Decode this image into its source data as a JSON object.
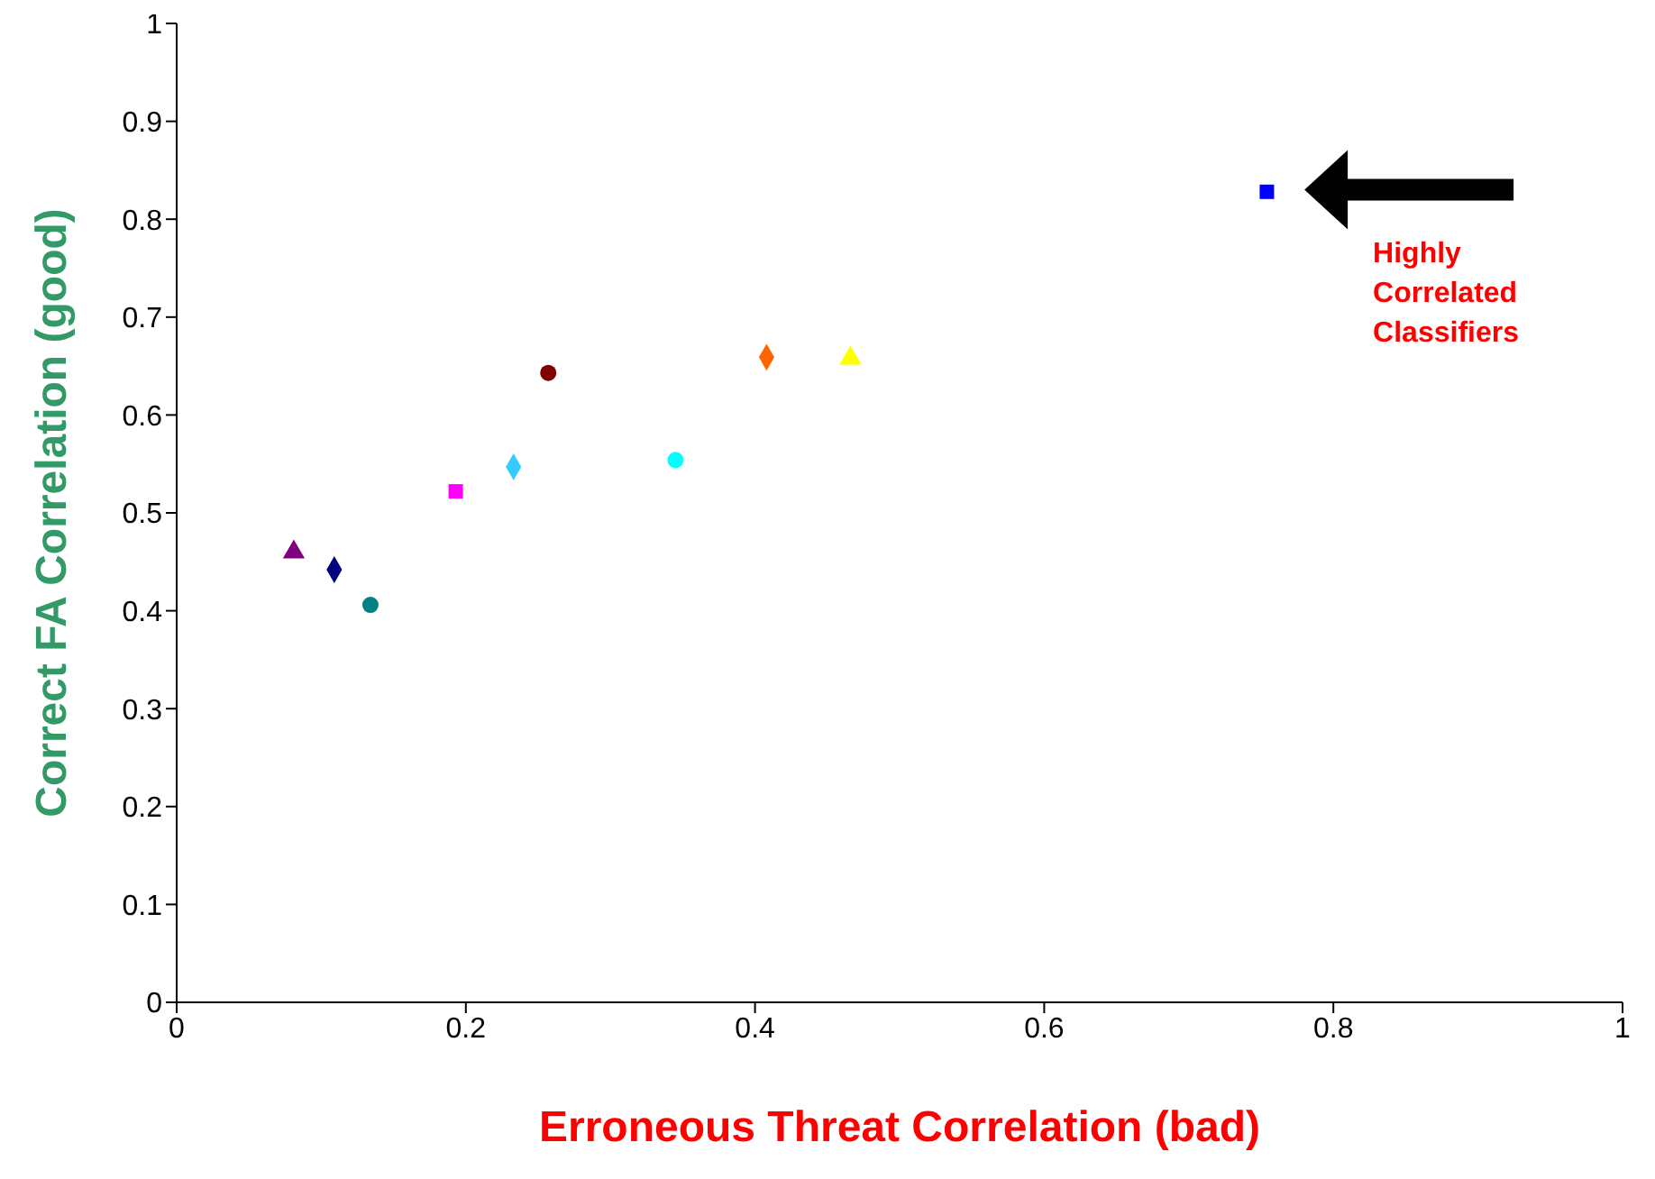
{
  "chart_data": {
    "type": "scatter",
    "xlabel": "Erroneous Threat Correlation (bad)",
    "ylabel": "Correct FA Correlation (good)",
    "xlim": [
      0,
      1
    ],
    "ylim": [
      0,
      1
    ],
    "xticks": [
      0,
      0.2,
      0.4,
      0.6,
      0.8,
      1
    ],
    "yticks": [
      0,
      0.1,
      0.2,
      0.3,
      0.4,
      0.5,
      0.6,
      0.7,
      0.8,
      0.9,
      1
    ],
    "grid": false,
    "annotations": [
      "Highly Correlated Classifiers"
    ],
    "series": [
      {
        "color": "#0000ff",
        "marker": "square",
        "x": [
          0.754
        ],
        "values": [
          0.828
        ]
      },
      {
        "color": "#ffff00",
        "marker": "triangle",
        "x": [
          0.466
        ],
        "values": [
          0.658
        ]
      },
      {
        "color": "#ff6600",
        "marker": "diamond",
        "x": [
          0.408
        ],
        "values": [
          0.659
        ]
      },
      {
        "color": "#800000",
        "marker": "circle",
        "x": [
          0.257
        ],
        "values": [
          0.643
        ]
      },
      {
        "color": "#00ffff",
        "marker": "circle",
        "x": [
          0.345
        ],
        "values": [
          0.554
        ]
      },
      {
        "color": "#33ccff",
        "marker": "diamond",
        "x": [
          0.233
        ],
        "values": [
          0.547
        ]
      },
      {
        "color": "#ff00ff",
        "marker": "square",
        "x": [
          0.193
        ],
        "values": [
          0.522
        ]
      },
      {
        "color": "#800080",
        "marker": "triangle",
        "x": [
          0.081
        ],
        "values": [
          0.46
        ]
      },
      {
        "color": "#000080",
        "marker": "diamond",
        "x": [
          0.109
        ],
        "values": [
          0.442
        ]
      },
      {
        "color": "#008080",
        "marker": "circle",
        "x": [
          0.134
        ],
        "values": [
          0.406
        ]
      }
    ]
  }
}
